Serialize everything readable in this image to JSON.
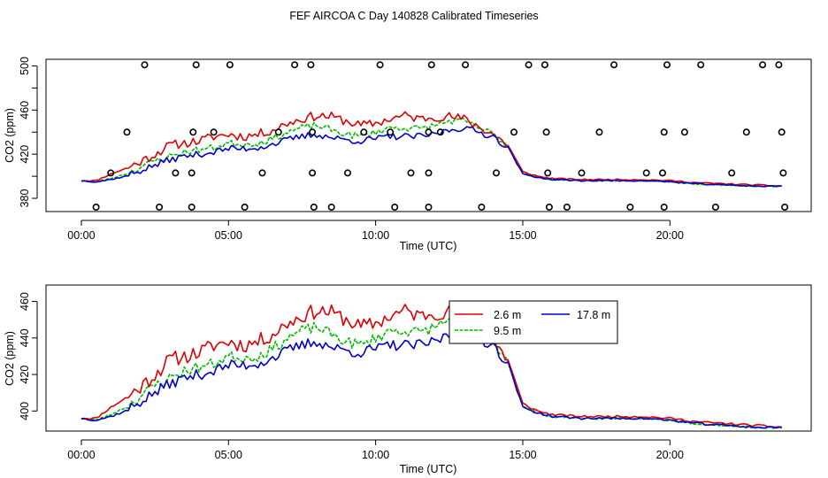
{
  "title": "FEF AIRCOA C  Day 140828  Calibrated Timeseries",
  "colors": {
    "h2_6": "#dd0000",
    "h9_5": "#00bb00",
    "h17_8": "#0000cc",
    "frame": "#000000"
  },
  "chart_data": [
    {
      "type": "line",
      "id": "top",
      "title": "FEF AIRCOA C  Day 140828  Calibrated Timeseries",
      "xlabel": "Time (UTC)",
      "ylabel": "CO2 (ppm)",
      "xlim": [
        -1.2,
        24.8
      ],
      "ylim": [
        368,
        506
      ],
      "xticks": [
        0,
        5,
        10,
        15,
        20
      ],
      "xtick_labels": [
        "00:00",
        "05:00",
        "10:00",
        "15:00",
        "20:00"
      ],
      "yticks": [
        380,
        420,
        460,
        500
      ],
      "ytick_labels": [
        "380",
        "420",
        "460",
        "500"
      ],
      "yticks_minor": [
        400,
        440,
        480
      ],
      "grid": false,
      "anchors": {
        "x": [
          0.0,
          0.5,
          1.0,
          1.5,
          2.0,
          2.5,
          3.0,
          3.5,
          4.0,
          4.5,
          5.0,
          5.5,
          6.0,
          6.5,
          7.0,
          7.5,
          8.0,
          8.5,
          9.0,
          9.5,
          10.0,
          10.5,
          11.0,
          11.5,
          12.0,
          12.5,
          13.0,
          13.5,
          14.0,
          14.5,
          15.0,
          15.5,
          16.0,
          17.0,
          18.0,
          19.0,
          20.0,
          21.0,
          22.0,
          23.0,
          23.8
        ],
        "h2_6": [
          396,
          396,
          402,
          407,
          413,
          420,
          428,
          430,
          432,
          436,
          438,
          436,
          438,
          442,
          448,
          452,
          455,
          454,
          450,
          446,
          448,
          452,
          455,
          452,
          454,
          454,
          452,
          445,
          438,
          428,
          404,
          400,
          398,
          397,
          397,
          397,
          396,
          394,
          393,
          392,
          391
        ],
        "h9_5": [
          396,
          395,
          398,
          402,
          408,
          414,
          418,
          422,
          424,
          426,
          430,
          429,
          430,
          434,
          440,
          444,
          446,
          442,
          438,
          436,
          440,
          444,
          444,
          443,
          446,
          450,
          450,
          444,
          438,
          428,
          403,
          399,
          397,
          396,
          396,
          396,
          395,
          393,
          392,
          391,
          391
        ],
        "h17_8": [
          396,
          395,
          397,
          400,
          405,
          410,
          415,
          418,
          420,
          422,
          425,
          425,
          426,
          429,
          433,
          436,
          438,
          435,
          433,
          432,
          434,
          436,
          436,
          436,
          438,
          442,
          444,
          440,
          436,
          426,
          402,
          399,
          397,
          396,
          396,
          396,
          395,
          393,
          392,
          391,
          391
        ]
      },
      "series": [
        {
          "name": "2.6 m",
          "key": "h2_6",
          "noise": 4.2,
          "seed": 11
        },
        {
          "name": "9.5 m",
          "key": "h9_5",
          "noise": 3.0,
          "seed": 23
        },
        {
          "name": "17.8 m",
          "key": "h17_8",
          "noise": 3.0,
          "seed": 37
        }
      ],
      "markers": {
        "name": "flags",
        "points": [
          [
            2.15,
            501
          ],
          [
            3.9,
            501
          ],
          [
            5.05,
            501
          ],
          [
            7.25,
            501
          ],
          [
            7.8,
            501
          ],
          [
            10.15,
            501
          ],
          [
            11.9,
            501
          ],
          [
            13.05,
            501
          ],
          [
            15.2,
            501
          ],
          [
            15.75,
            501
          ],
          [
            18.1,
            501
          ],
          [
            19.9,
            501
          ],
          [
            21.05,
            501
          ],
          [
            23.15,
            501
          ],
          [
            23.7,
            501
          ],
          [
            1.55,
            440
          ],
          [
            3.8,
            440
          ],
          [
            4.5,
            440
          ],
          [
            6.7,
            440
          ],
          [
            7.85,
            440
          ],
          [
            9.6,
            440
          ],
          [
            10.5,
            440
          ],
          [
            11.8,
            440
          ],
          [
            12.2,
            440
          ],
          [
            14.7,
            440
          ],
          [
            15.8,
            440
          ],
          [
            17.6,
            440
          ],
          [
            19.8,
            440
          ],
          [
            20.5,
            440
          ],
          [
            22.6,
            440
          ],
          [
            23.8,
            440
          ],
          [
            1.0,
            403
          ],
          [
            3.2,
            403
          ],
          [
            3.75,
            403
          ],
          [
            6.15,
            403
          ],
          [
            7.85,
            403
          ],
          [
            9.05,
            403
          ],
          [
            11.2,
            403
          ],
          [
            11.8,
            403
          ],
          [
            14.1,
            403
          ],
          [
            15.85,
            403
          ],
          [
            17.0,
            403
          ],
          [
            19.2,
            403
          ],
          [
            19.75,
            403
          ],
          [
            22.1,
            403
          ],
          [
            23.85,
            403
          ],
          [
            0.5,
            372
          ],
          [
            2.65,
            372
          ],
          [
            3.75,
            372
          ],
          [
            5.55,
            372
          ],
          [
            7.9,
            372
          ],
          [
            8.5,
            372
          ],
          [
            10.65,
            372
          ],
          [
            11.8,
            372
          ],
          [
            13.6,
            372
          ],
          [
            15.9,
            372
          ],
          [
            16.5,
            372
          ],
          [
            18.65,
            372
          ],
          [
            19.8,
            372
          ],
          [
            21.55,
            372
          ],
          [
            23.9,
            372
          ]
        ]
      }
    },
    {
      "type": "line",
      "id": "bottom",
      "xlabel": "Time (UTC)",
      "ylabel": "CO2 (ppm)",
      "xlim": [
        -1.2,
        24.8
      ],
      "ylim": [
        389,
        469
      ],
      "xticks": [
        0,
        5,
        10,
        15,
        20
      ],
      "xtick_labels": [
        "00:00",
        "05:00",
        "10:00",
        "15:00",
        "20:00"
      ],
      "yticks": [
        400,
        420,
        440,
        460
      ],
      "ytick_labels": [
        "400",
        "420",
        "440",
        "460"
      ],
      "grid": false,
      "legend": {
        "position": "top-center",
        "entries": [
          {
            "label": "2.6 m",
            "key": "h2_6",
            "dash": false
          },
          {
            "label": "9.5 m",
            "key": "h9_5",
            "dash": true
          },
          {
            "label": "17.8 m",
            "key": "h17_8",
            "dash": false
          }
        ]
      }
    }
  ]
}
